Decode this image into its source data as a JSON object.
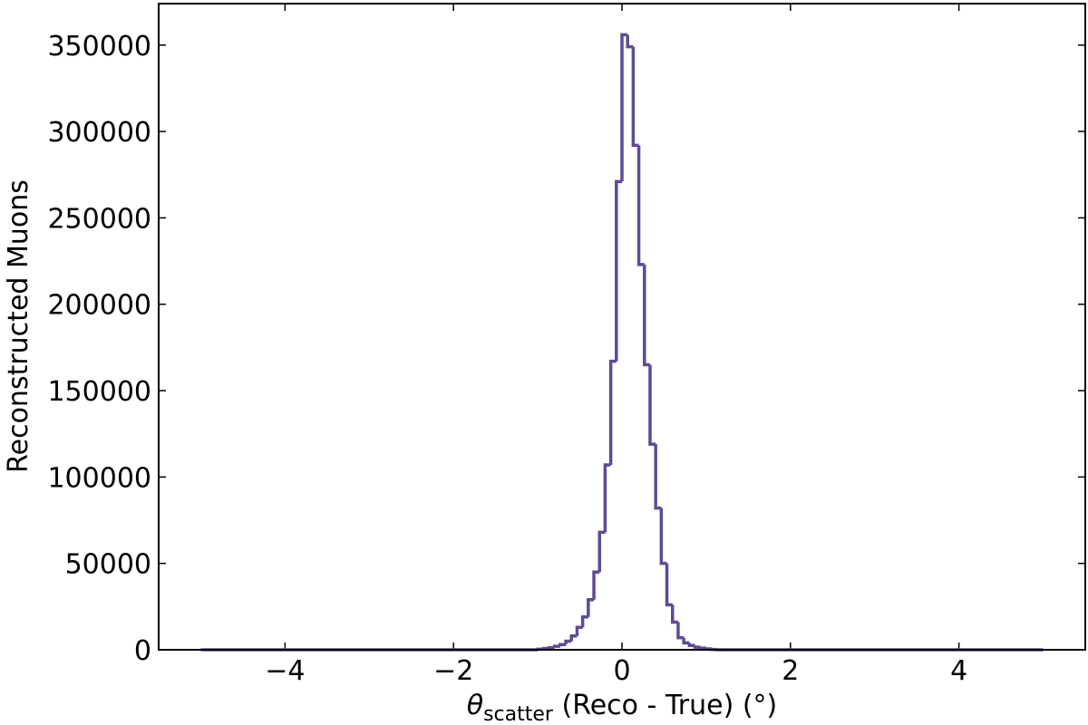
{
  "chart_data": {
    "type": "histogram",
    "xlabel": [
      "θ",
      "scatter",
      " (Reco - True) (°)"
    ],
    "ylabel": "Reconstructed Muons",
    "color": "#5f4a94",
    "bins": [
      -5,
      -4.9333,
      -4.8667,
      -4.8,
      -4.7333,
      -4.6667,
      -4.6,
      -4.5333,
      -4.4667,
      -4.4,
      -4.3333,
      -4.2667,
      -4.2,
      -4.1333,
      -4.0667,
      -4,
      -3.9333,
      -3.8667,
      -3.8,
      -3.7333,
      -3.6667,
      -3.6,
      -3.5333,
      -3.4667,
      -3.4,
      -3.3333,
      -3.2667,
      -3.2,
      -3.1333,
      -3.0667,
      -3,
      -2.9333,
      -2.8667,
      -2.8,
      -2.7333,
      -2.6667,
      -2.6,
      -2.5333,
      -2.4667,
      -2.4,
      -2.3333,
      -2.2667,
      -2.2,
      -2.1333,
      -2.0667,
      -2,
      -1.9333,
      -1.8667,
      -1.8,
      -1.7333,
      -1.6667,
      -1.6,
      -1.5333,
      -1.4667,
      -1.4,
      -1.3333,
      -1.2667,
      -1.2,
      -1.1333,
      -1.0667,
      -1,
      -0.9333,
      -0.8667,
      -0.8,
      -0.7333,
      -0.6667,
      -0.6,
      -0.5333,
      -0.4667,
      -0.4,
      -0.3333,
      -0.2667,
      -0.2,
      -0.1333,
      -0.0667,
      0,
      0.0667,
      0.1333,
      0.2,
      0.2667,
      0.3333,
      0.4,
      0.4667,
      0.5333,
      0.6,
      0.6667,
      0.7333,
      0.8,
      0.8667,
      0.9333,
      1,
      1.0667,
      1.1333,
      1.2,
      1.2667,
      1.3333,
      1.4,
      1.4667,
      1.5333,
      1.6,
      1.6667,
      1.7333,
      1.8,
      1.8667,
      1.9333,
      2,
      2.0667,
      2.1333,
      2.2,
      2.2667,
      2.3333,
      2.4,
      2.4667,
      2.5333,
      2.6,
      2.6667,
      2.7333,
      2.8,
      2.8667,
      2.9333,
      3,
      3.0667,
      3.1333,
      3.2,
      3.2667,
      3.3333,
      3.4,
      3.4667,
      3.5333,
      3.6,
      3.6667,
      3.7333,
      3.8,
      3.8667,
      3.9333,
      4,
      4.0667,
      4.1333,
      4.2,
      4.2667,
      4.3333,
      4.4,
      4.4667,
      4.5333,
      4.6,
      4.6667,
      4.7333,
      4.8,
      4.8667,
      4.9333,
      5
    ],
    "values": [
      0,
      0,
      0,
      0,
      0,
      0,
      0,
      0,
      0,
      0,
      0,
      0,
      0,
      0,
      0,
      0,
      0,
      0,
      0,
      0,
      0,
      0,
      0,
      0,
      0,
      0,
      0,
      0,
      0,
      0,
      0,
      0,
      0,
      0,
      0,
      0,
      0,
      0,
      0,
      0,
      0,
      0,
      0,
      0,
      0,
      0,
      0,
      0,
      0,
      0,
      0,
      0,
      0,
      0,
      0,
      0,
      0,
      0,
      0,
      0,
      300,
      700,
      1200,
      2000,
      3000,
      5000,
      8000,
      13000,
      19000,
      29000,
      45000,
      68000,
      107000,
      167000,
      271000,
      356000,
      349000,
      292000,
      223000,
      165000,
      119000,
      82000,
      50000,
      26000,
      16000,
      7000,
      4000,
      2500,
      1500,
      1000,
      500,
      200,
      0,
      0,
      0,
      0,
      0,
      0,
      0,
      0,
      0,
      0,
      0,
      0,
      0,
      0,
      0,
      0,
      0,
      0,
      0,
      0,
      0,
      0,
      0,
      0,
      0,
      0,
      0,
      0,
      0,
      0,
      0,
      0,
      0,
      0,
      0,
      0,
      0,
      0,
      0,
      0,
      0,
      0,
      0,
      0,
      0,
      0,
      0,
      0,
      0,
      0,
      0,
      0,
      0,
      0,
      0,
      0,
      0,
      0
    ],
    "xlim": [
      -5.5,
      5.5
    ],
    "ylim": [
      0,
      374000
    ],
    "xticks": [
      {
        "value": -4,
        "label": "−4"
      },
      {
        "value": -2,
        "label": "−2"
      },
      0,
      2,
      4
    ],
    "yticks": [
      0,
      50000,
      100000,
      150000,
      200000,
      250000,
      300000,
      350000
    ],
    "grid": false
  }
}
